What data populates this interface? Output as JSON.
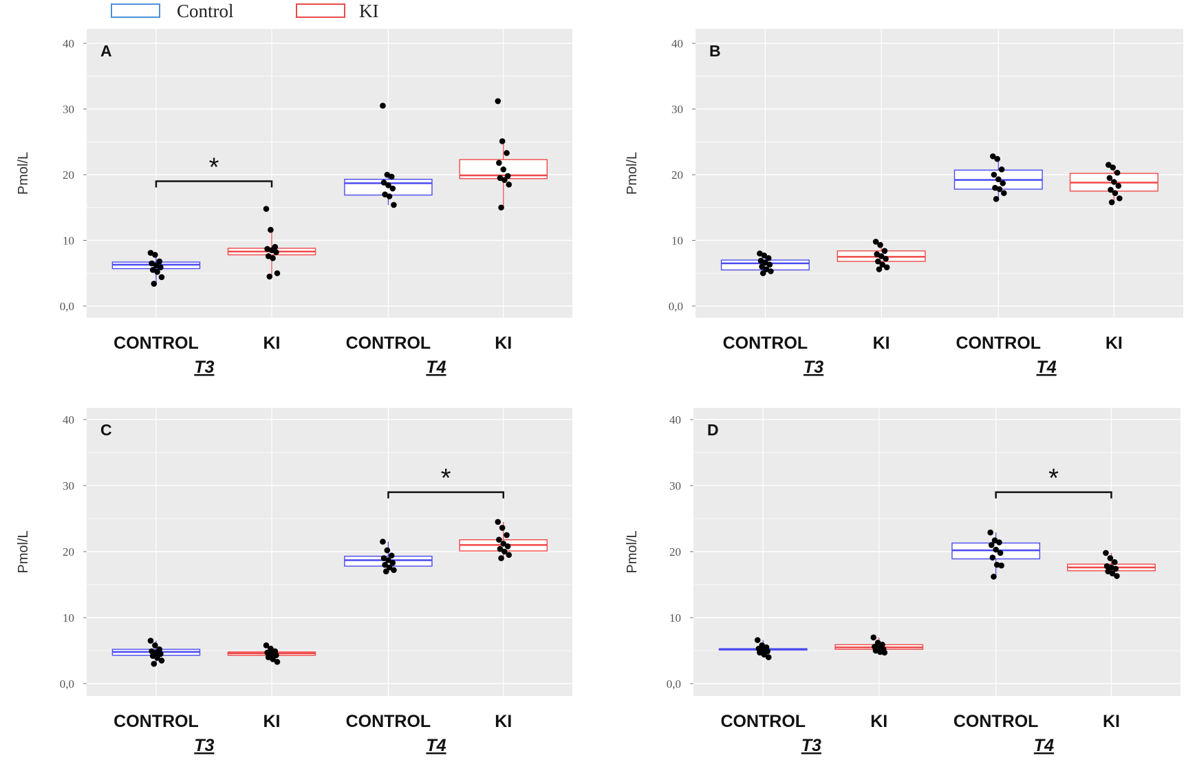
{
  "legend": {
    "items": [
      {
        "label": "Control",
        "color": "#4f8fd8"
      },
      {
        "label": "KI",
        "color": "#e84a4a"
      }
    ]
  },
  "colors": {
    "control": "#4a4af0",
    "ki": "#f04848",
    "panel_bg": "#ebebeb",
    "grid": "#ffffff",
    "points": "#000000"
  },
  "chart_data": [
    {
      "type": "box",
      "panel_label": "A",
      "ylabel": "Pmol/L",
      "ylim": [
        -2,
        42
      ],
      "yticks": [
        "0,0",
        "10",
        "20",
        "30",
        "40"
      ],
      "ytick_values": [
        0,
        10,
        20,
        30,
        40
      ],
      "categories": [
        "CONTROL",
        "KI",
        "CONTROL",
        "KI"
      ],
      "groups": [
        "T3",
        "T4"
      ],
      "grid": true,
      "boxes": [
        {
          "series": "Control",
          "q1": 5.7,
          "median": 6.3,
          "q3": 6.7,
          "whisker_low": 3.4,
          "whisker_high": 8.1,
          "points": [
            8.1,
            7.8,
            6.8,
            6.5,
            6.2,
            5.9,
            5.5,
            5.2,
            4.4,
            3.4
          ]
        },
        {
          "series": "KI",
          "q1": 7.8,
          "median": 8.3,
          "q3": 8.8,
          "whisker_low": 4.5,
          "whisker_high": 11.6,
          "points": [
            14.8,
            11.6,
            9.0,
            8.7,
            8.5,
            8.2,
            7.6,
            7.3,
            5.0,
            4.5
          ]
        },
        {
          "series": "Control",
          "q1": 16.9,
          "median": 18.7,
          "q3": 19.3,
          "whisker_low": 15.4,
          "whisker_high": 20.0,
          "points": [
            30.5,
            20.0,
            19.7,
            18.8,
            18.4,
            17.9,
            17.0,
            16.7,
            15.4
          ]
        },
        {
          "series": "KI",
          "q1": 19.4,
          "median": 19.9,
          "q3": 22.3,
          "whisker_low": 15.0,
          "whisker_high": 25.1,
          "points": [
            31.2,
            25.1,
            23.3,
            21.8,
            20.8,
            19.8,
            19.5,
            19.2,
            18.5,
            15.0
          ]
        }
      ],
      "significance": [
        {
          "from": 0,
          "to": 1,
          "level": 19,
          "label": "*"
        }
      ]
    },
    {
      "type": "box",
      "panel_label": "B",
      "ylabel": "Pmol/L",
      "ylim": [
        -2,
        42
      ],
      "yticks": [
        "0,0",
        "10",
        "20",
        "30",
        "40"
      ],
      "ytick_values": [
        0,
        10,
        20,
        30,
        40
      ],
      "categories": [
        "CONTROL",
        "KI",
        "CONTROL",
        "KI"
      ],
      "groups": [
        "T3",
        "T4"
      ],
      "grid": true,
      "boxes": [
        {
          "series": "Control",
          "q1": 5.5,
          "median": 6.5,
          "q3": 7.0,
          "whisker_low": 5.0,
          "whisker_high": 8.0,
          "points": [
            8.0,
            7.7,
            7.3,
            6.9,
            6.6,
            6.3,
            6.0,
            5.6,
            5.3,
            5.0
          ]
        },
        {
          "series": "KI",
          "q1": 6.8,
          "median": 7.5,
          "q3": 8.4,
          "whisker_low": 5.6,
          "whisker_high": 9.8,
          "points": [
            9.8,
            9.3,
            8.4,
            7.9,
            7.6,
            7.2,
            6.8,
            6.3,
            5.9,
            5.6
          ]
        },
        {
          "series": "Control",
          "q1": 17.8,
          "median": 19.2,
          "q3": 20.7,
          "whisker_low": 16.3,
          "whisker_high": 22.8,
          "points": [
            22.8,
            22.4,
            20.8,
            20.0,
            19.3,
            18.7,
            18.0,
            17.8,
            17.2,
            16.3
          ]
        },
        {
          "series": "KI",
          "q1": 17.5,
          "median": 18.8,
          "q3": 20.2,
          "whisker_low": 15.8,
          "whisker_high": 21.5,
          "points": [
            21.5,
            21.1,
            20.3,
            19.5,
            18.9,
            18.3,
            17.7,
            17.2,
            16.4,
            15.8
          ]
        }
      ],
      "significance": []
    },
    {
      "type": "box",
      "panel_label": "C",
      "ylabel": "Pmol/L",
      "ylim": [
        -2,
        42
      ],
      "yticks": [
        "0,0",
        "10",
        "20",
        "30",
        "40"
      ],
      "ytick_values": [
        0,
        10,
        20,
        30,
        40
      ],
      "categories": [
        "CONTROL",
        "KI",
        "CONTROL",
        "KI"
      ],
      "groups": [
        "T3",
        "T4"
      ],
      "grid": true,
      "boxes": [
        {
          "series": "Control",
          "q1": 4.3,
          "median": 4.8,
          "q3": 5.2,
          "whisker_low": 3.0,
          "whisker_high": 6.5,
          "points": [
            6.5,
            5.8,
            5.2,
            4.9,
            4.7,
            4.5,
            4.2,
            3.9,
            3.5,
            3.0
          ]
        },
        {
          "series": "KI",
          "q1": 4.3,
          "median": 4.6,
          "q3": 4.8,
          "whisker_low": 3.3,
          "whisker_high": 5.8,
          "points": [
            5.8,
            5.3,
            4.9,
            4.7,
            4.5,
            4.3,
            4.0,
            3.7,
            3.3
          ]
        },
        {
          "series": "Control",
          "q1": 17.8,
          "median": 18.7,
          "q3": 19.3,
          "whisker_low": 17.0,
          "whisker_high": 21.5,
          "points": [
            21.5,
            20.2,
            19.4,
            19.0,
            18.7,
            18.3,
            18.0,
            17.6,
            17.2,
            17.0
          ]
        },
        {
          "series": "KI",
          "q1": 20.1,
          "median": 21.0,
          "q3": 21.8,
          "whisker_low": 19.0,
          "whisker_high": 24.5,
          "points": [
            24.5,
            23.6,
            22.5,
            21.8,
            21.2,
            20.8,
            20.4,
            20.0,
            19.5,
            19.0
          ]
        }
      ],
      "significance": [
        {
          "from": 2,
          "to": 3,
          "level": 29,
          "label": "*"
        }
      ]
    },
    {
      "type": "box",
      "panel_label": "D",
      "ylabel": "Pmol/L",
      "ylim": [
        -2,
        42
      ],
      "yticks": [
        "0,0",
        "10",
        "20",
        "30",
        "40"
      ],
      "ytick_values": [
        0,
        10,
        20,
        30,
        40
      ],
      "categories": [
        "CONTROL",
        "KI",
        "CONTROL",
        "KI"
      ],
      "groups": [
        "T3",
        "T4"
      ],
      "grid": true,
      "boxes": [
        {
          "series": "Control",
          "q1": 5.1,
          "median": 5.2,
          "q3": 5.3,
          "whisker_low": 4.0,
          "whisker_high": 6.6,
          "points": [
            6.6,
            5.8,
            5.5,
            5.3,
            5.1,
            4.9,
            4.7,
            4.4,
            4.0
          ]
        },
        {
          "series": "KI",
          "q1": 5.2,
          "median": 5.5,
          "q3": 5.9,
          "whisker_low": 4.7,
          "whisker_high": 7.0,
          "points": [
            7.0,
            6.2,
            5.9,
            5.6,
            5.4,
            5.2,
            5.0,
            4.8,
            4.7
          ]
        },
        {
          "series": "Control",
          "q1": 18.9,
          "median": 20.2,
          "q3": 21.3,
          "whisker_low": 16.2,
          "whisker_high": 22.9,
          "points": [
            22.9,
            21.7,
            21.4,
            21.0,
            20.3,
            19.8,
            19.1,
            18.0,
            17.9,
            16.2
          ]
        },
        {
          "series": "KI",
          "q1": 17.1,
          "median": 17.6,
          "q3": 18.1,
          "whisker_low": 16.3,
          "whisker_high": 19.8,
          "points": [
            19.8,
            19.0,
            18.4,
            17.8,
            17.6,
            17.4,
            17.0,
            16.7,
            16.3
          ]
        }
      ],
      "significance": [
        {
          "from": 2,
          "to": 3,
          "level": 29,
          "label": "*"
        }
      ]
    }
  ]
}
